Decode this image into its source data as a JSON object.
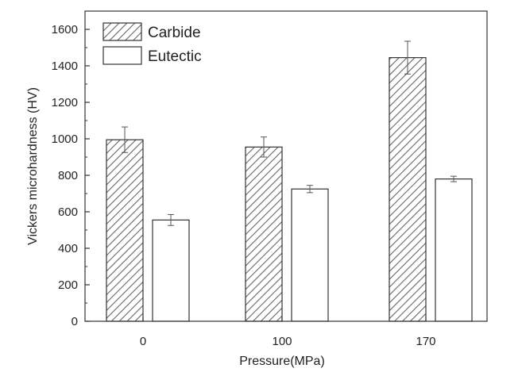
{
  "chart_data": {
    "type": "bar",
    "xlabel": "Pressure(MPa)",
    "ylabel": "Vickers microhardness (HV)",
    "categories": [
      "0",
      "100",
      "170"
    ],
    "ylim": [
      0,
      1700
    ],
    "yticks": [
      0,
      200,
      400,
      600,
      800,
      1000,
      1200,
      1400,
      1600
    ],
    "legend_position": "top-left",
    "grid": false,
    "series": [
      {
        "name": "Carbide",
        "pattern": "diagonal-hatch",
        "values": [
          995,
          955,
          1445
        ],
        "errors": [
          70,
          55,
          90
        ]
      },
      {
        "name": "Eutectic",
        "pattern": "none",
        "values": [
          555,
          725,
          780
        ],
        "errors": [
          30,
          20,
          15
        ]
      }
    ]
  },
  "colors": {
    "axis": "#333333",
    "bar_stroke": "#333333",
    "hatch": "#666666",
    "fill": "#ffffff"
  }
}
